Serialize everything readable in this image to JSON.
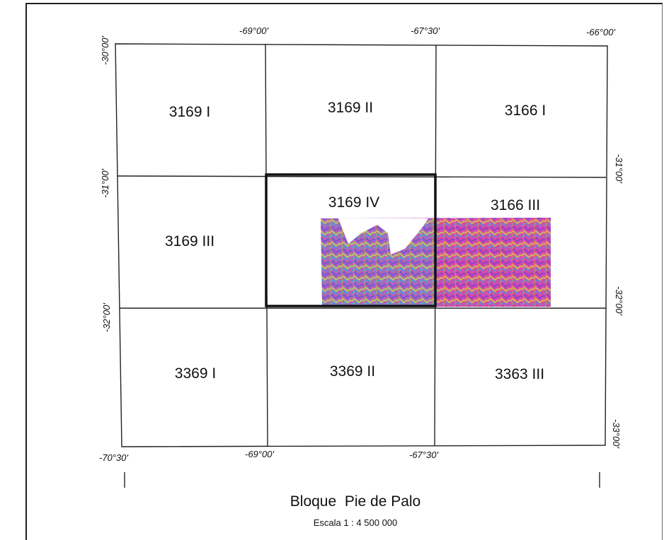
{
  "map": {
    "title": "Bloque  Pie de Palo",
    "scale": "Escala 1 : 4 500 000",
    "top_longitudes": [
      "-69°00'",
      "-67°30'",
      "-66°00'"
    ],
    "bottom_longitudes": [
      "-70°30'",
      "-69°00'",
      "-67°30'"
    ],
    "left_latitudes": [
      "-30°00'",
      "-31°00'",
      "-32°00'"
    ],
    "right_latitudes": [
      "-31°00'",
      "-32°00'",
      "-33°00'"
    ],
    "sheets": [
      {
        "label": "3169 I"
      },
      {
        "label": "3169 II"
      },
      {
        "label": "3166 I"
      },
      {
        "label": "3169 III"
      },
      {
        "label": "3169 IV"
      },
      {
        "label": "3166 III"
      },
      {
        "label": "3369 I"
      },
      {
        "label": "3369 II"
      },
      {
        "label": "3363 III"
      }
    ],
    "highlighted_sheet": "3169 IV",
    "colors": {
      "grid": "#222222",
      "highlight": "#111111",
      "imagery": [
        "#e23aa0",
        "#7b3fd6",
        "#3aa0e0",
        "#c8e040",
        "#f0a030",
        "#b02060",
        "#50c090",
        "#9050e0"
      ]
    }
  }
}
